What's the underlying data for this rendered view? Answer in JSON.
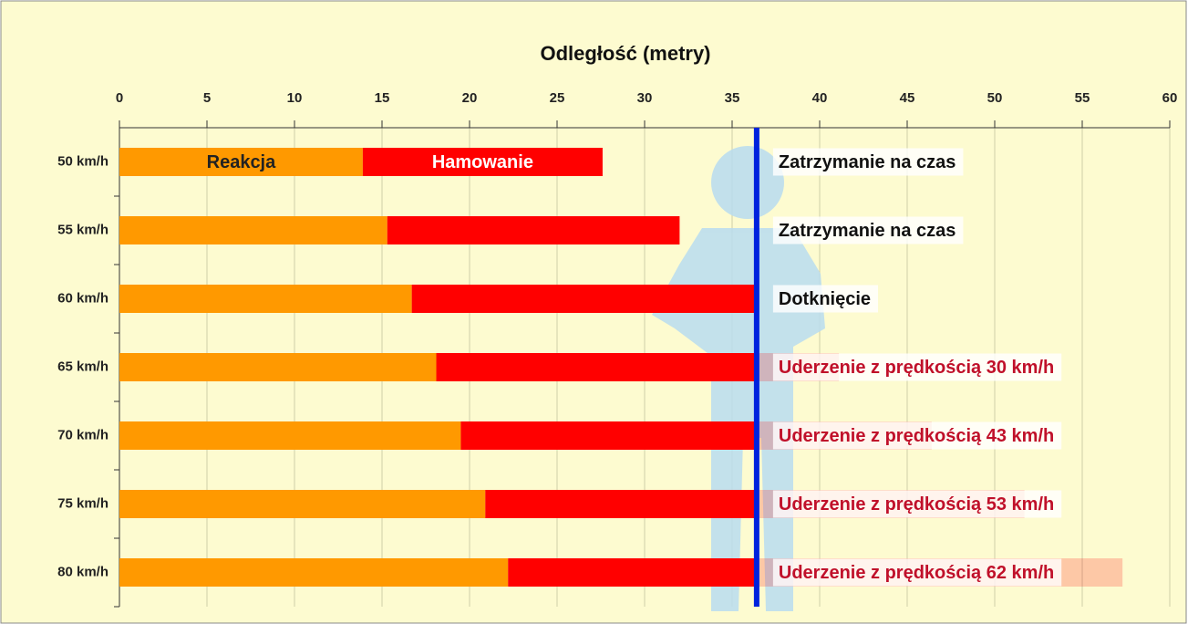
{
  "chart_data": {
    "type": "bar",
    "orientation": "horizontal",
    "stacked": true,
    "x_label": "Odległość (metry)",
    "categories": [
      "50 km/h",
      "55 km/h",
      "60 km/h",
      "65 km/h",
      "70 km/h",
      "75 km/h",
      "80 km/h"
    ],
    "series": [
      {
        "name": "Reakcja",
        "color": "#ff9900",
        "values": [
          13.9,
          15.3,
          16.7,
          18.1,
          19.5,
          20.9,
          22.2
        ]
      },
      {
        "name": "Hamowanie",
        "color": "#ff0000",
        "values": [
          13.7,
          16.7,
          19.7,
          23.0,
          26.9,
          30.8,
          35.1
        ]
      }
    ],
    "annotations": [
      "Zatrzymanie na czas",
      "Zatrzymanie na czas",
      "Dotknięcie",
      "Uderzenie z prędkością 30 km/h",
      "Uderzenie z prędkością 43 km/h",
      "Uderzenie z prędkością 53 km/h",
      "Uderzenie z prędkością 62 km/h"
    ],
    "reference_line": {
      "value": 36.4,
      "color": "#0022dd"
    },
    "xlim": [
      0,
      60
    ],
    "xticks": [
      0,
      5,
      10,
      15,
      20,
      25,
      30,
      35,
      40,
      45,
      50,
      55,
      60
    ],
    "grid": true
  }
}
